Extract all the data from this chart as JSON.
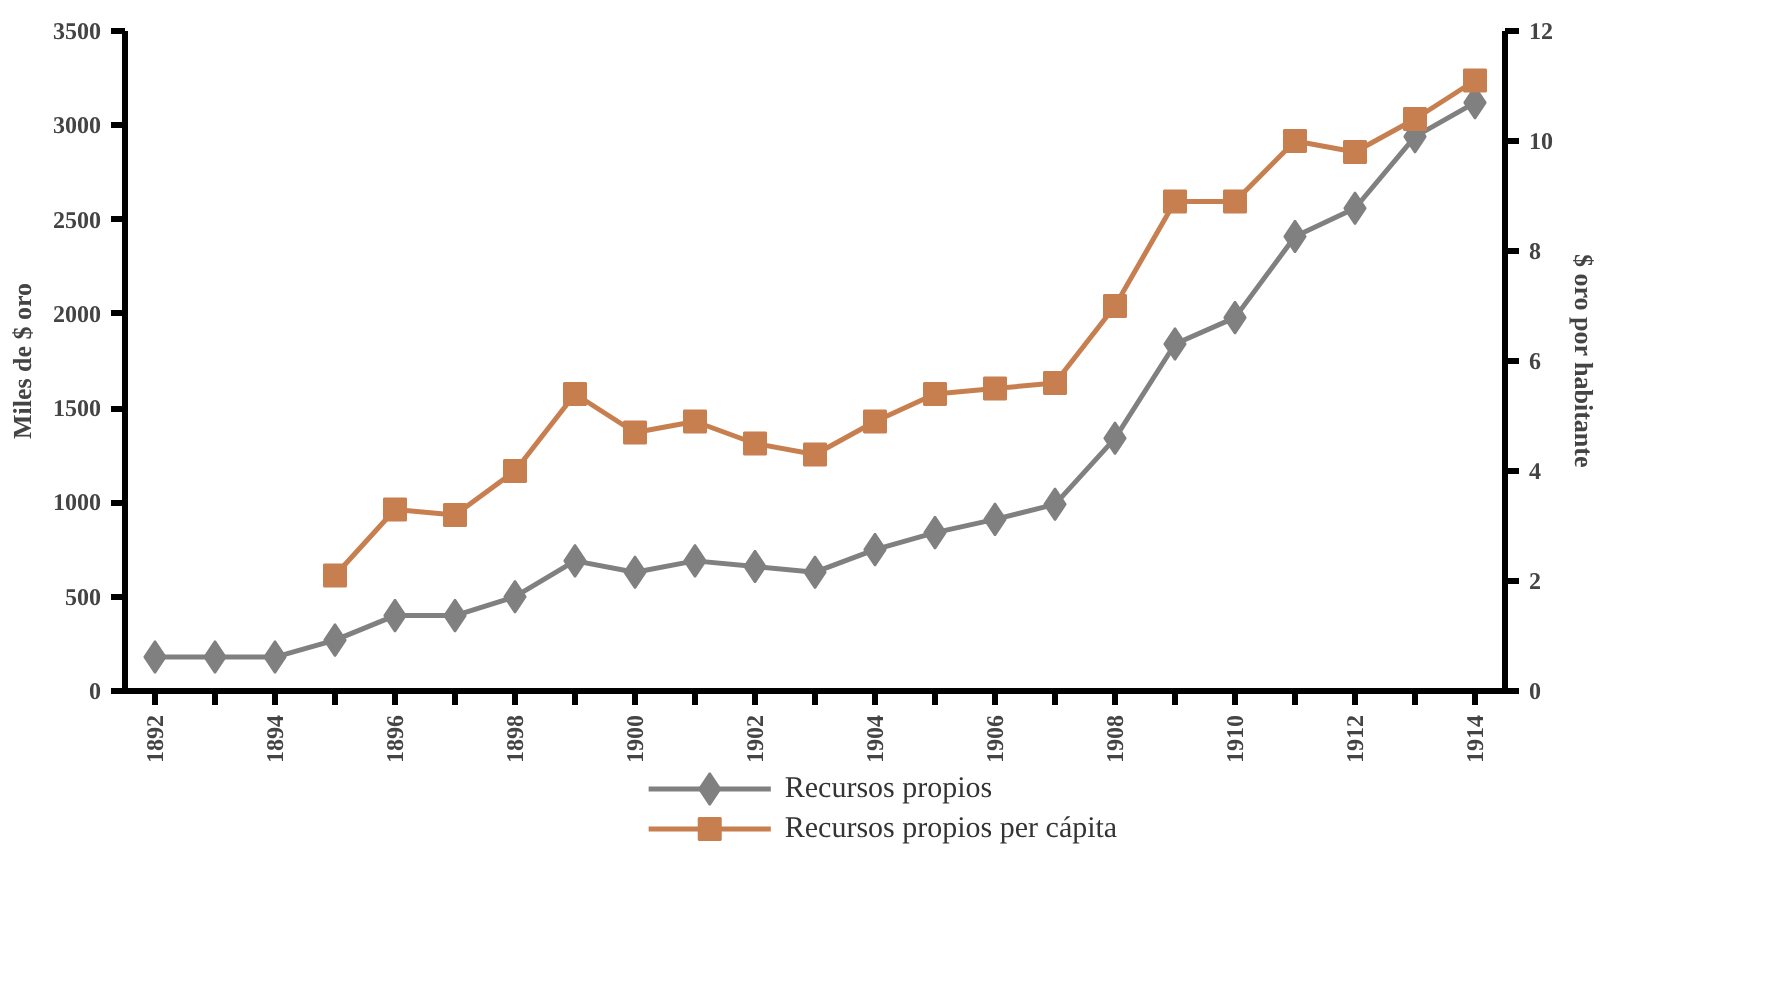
{
  "chart_data": {
    "type": "line",
    "ylabel": "Miles de $ oro",
    "y2label": "$ oro por habitante",
    "x": [
      1892,
      1893,
      1894,
      1895,
      1896,
      1897,
      1898,
      1899,
      1900,
      1901,
      1902,
      1903,
      1904,
      1905,
      1906,
      1907,
      1908,
      1909,
      1910,
      1911,
      1912,
      1913,
      1914
    ],
    "series": [
      {
        "name": "Recursos propios",
        "color": "#808080",
        "marker": "diamond",
        "values": [
          180,
          180,
          180,
          270,
          400,
          400,
          500,
          690,
          630,
          690,
          660,
          630,
          750,
          840,
          910,
          990,
          1340,
          1840,
          1980,
          2410,
          2560,
          2940,
          3120
        ]
      },
      {
        "name": "Recursos propios per cápita",
        "color": "#c87f4f",
        "marker": "square",
        "axis": "y2",
        "values": [
          null,
          null,
          null,
          2.1,
          3.3,
          3.2,
          4.0,
          5.4,
          4.7,
          4.9,
          4.5,
          4.3,
          4.9,
          5.4,
          5.5,
          5.6,
          7.0,
          8.9,
          8.9,
          10.0,
          9.8,
          10.4,
          11.1
        ]
      }
    ],
    "xlim": [
      1891.5,
      1914.5
    ],
    "xticks": [
      1892,
      {
        "value": 1893,
        "label": null
      },
      1894,
      {
        "value": 1895,
        "label": null
      },
      1896,
      {
        "value": 1897,
        "label": null
      },
      1898,
      {
        "value": 1899,
        "label": null
      },
      1900,
      {
        "value": 1901,
        "label": null
      },
      1902,
      {
        "value": 1903,
        "label": null
      },
      1904,
      {
        "value": 1905,
        "label": null
      },
      1906,
      {
        "value": 1907,
        "label": null
      },
      1908,
      {
        "value": 1909,
        "label": null
      },
      1910,
      {
        "value": 1911,
        "label": null
      },
      1912,
      {
        "value": 1913,
        "label": null
      },
      1914
    ],
    "ylim": [
      0,
      3500
    ],
    "yticks": [
      0,
      500,
      1000,
      1500,
      2000,
      2500,
      3000,
      3500
    ],
    "y2lim": [
      0,
      12
    ],
    "y2ticks": [
      0,
      2,
      4,
      6,
      8,
      10,
      12
    ],
    "grid": false,
    "legend": "bottom",
    "line_style": "solid"
  }
}
